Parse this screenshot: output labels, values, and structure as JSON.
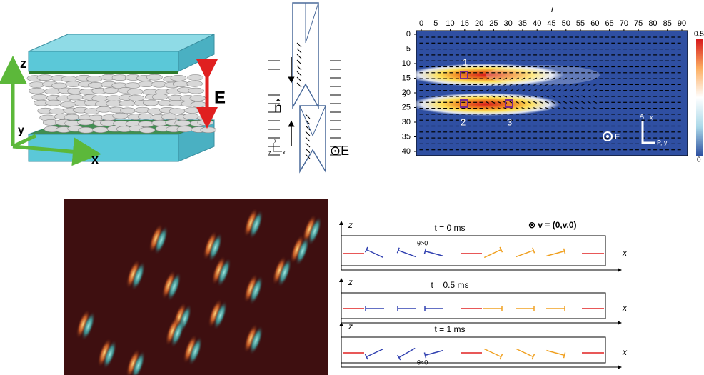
{
  "panel_a": {
    "z": "z",
    "y": "y",
    "x": "x",
    "field": "E"
  },
  "panel_b": {
    "director": "n̂",
    "field": "⊙E",
    "axes": {
      "y": "y",
      "z": "z",
      "x": "x"
    }
  },
  "panel_c": {
    "x_label": "i",
    "y_label": "j",
    "xticks": [
      0,
      5,
      10,
      15,
      20,
      25,
      30,
      35,
      40,
      45,
      50,
      55,
      60,
      65,
      70,
      75,
      80,
      85,
      90
    ],
    "yticks": [
      0,
      5,
      10,
      15,
      20,
      25,
      30,
      35,
      40
    ],
    "markers": [
      "1",
      "2",
      "3"
    ],
    "field": "E",
    "analyzer": "A",
    "analyzer_axis": "x",
    "polarizer": "P, y",
    "colorbar_ticks": [
      0.5,
      0
    ]
  },
  "panel_e": {
    "z": "z",
    "x": "x",
    "velocity": "⊗ v = (0,v,0)",
    "rows": [
      {
        "time": "t = 0 ms",
        "angle": "θ>0"
      },
      {
        "time": "t = 0.5 ms"
      },
      {
        "time": "t = 1 ms",
        "angle": "θ<0"
      }
    ]
  }
}
